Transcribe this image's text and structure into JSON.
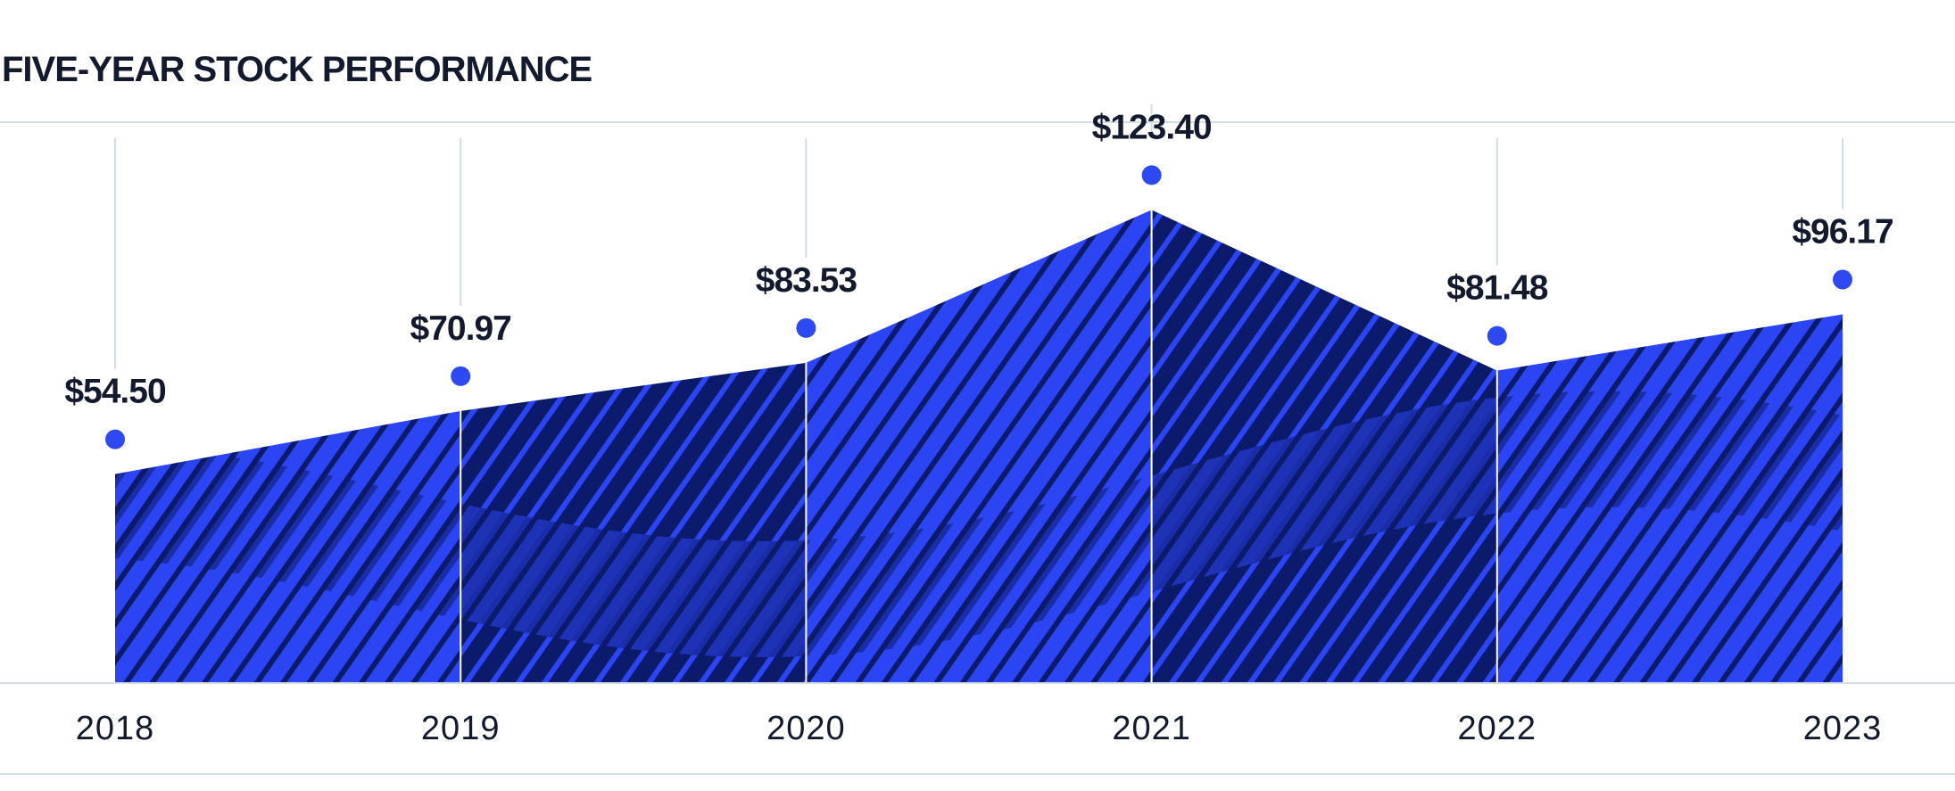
{
  "chart_data": {
    "type": "area",
    "title": "FIVE-YEAR STOCK PERFORMANCE",
    "categories": [
      "2018",
      "2019",
      "2020",
      "2021",
      "2022",
      "2023"
    ],
    "values": [
      54.5,
      70.97,
      83.53,
      123.4,
      81.48,
      96.17
    ],
    "value_labels": [
      "$54.50",
      "$70.97",
      "$83.53",
      "$123.40",
      "$81.48",
      "$96.17"
    ],
    "ylim": [
      0,
      130
    ],
    "grid": true,
    "colors": {
      "area_light": "#2b45f5",
      "area_dark": "#0c1a6b",
      "dot": "#2f49f2",
      "text": "#141a2e",
      "grid": "#d3dee2"
    }
  }
}
